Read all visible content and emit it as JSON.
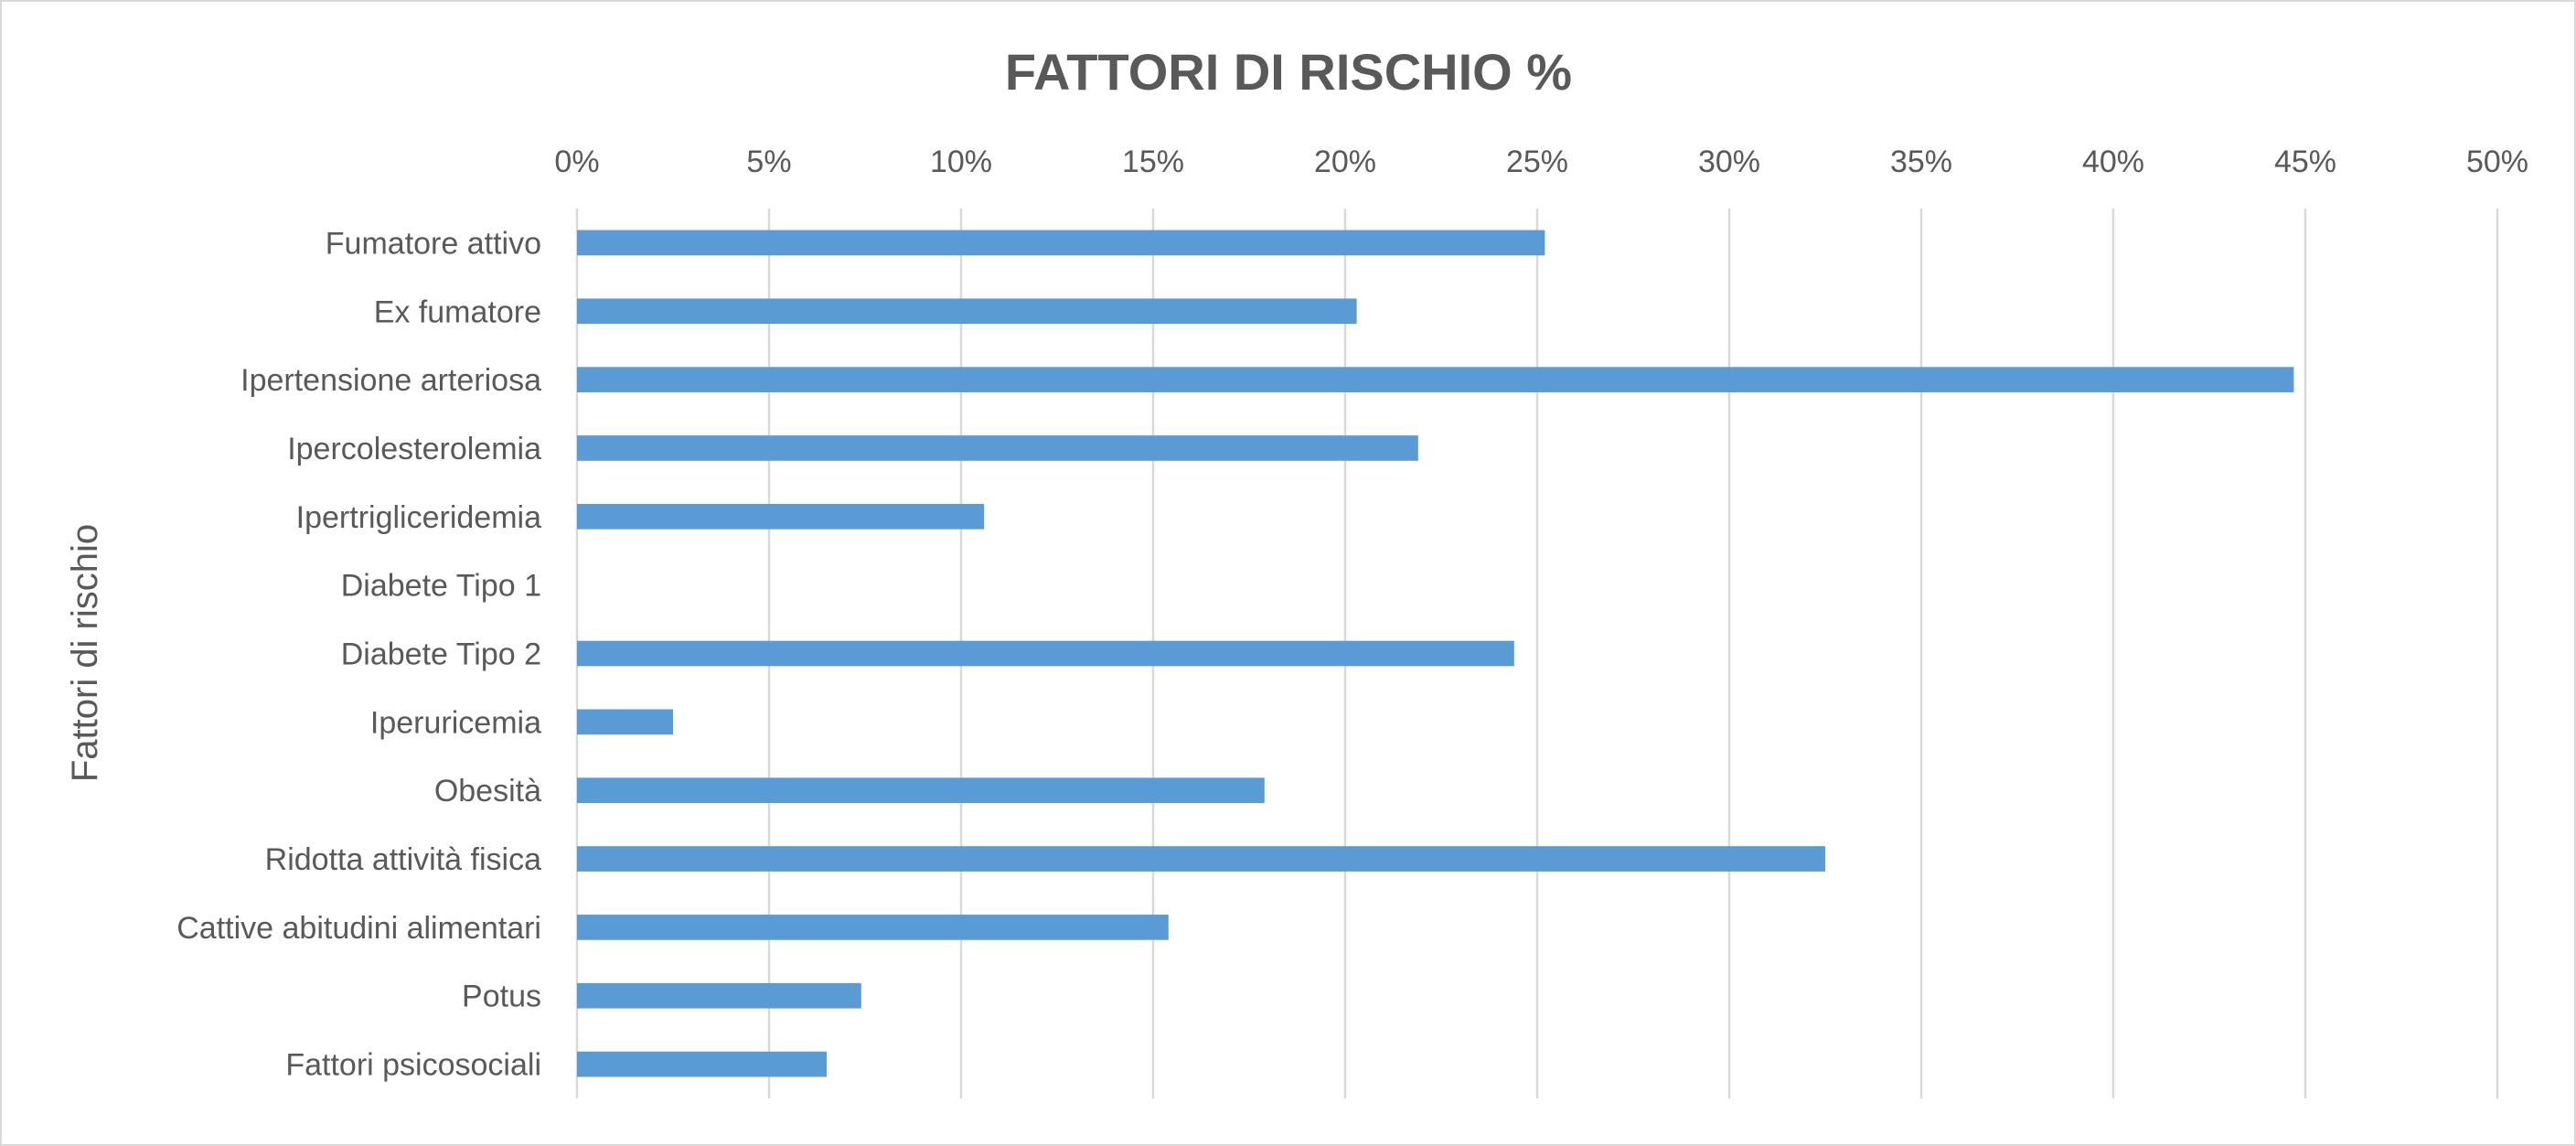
{
  "chart_data": {
    "type": "bar",
    "orientation": "horizontal",
    "title": "FATTORI DI RISCHIO %",
    "xlabel": "",
    "ylabel": "Fattori di rischio",
    "xlim": [
      0,
      50
    ],
    "x_ticks": [
      "0%",
      "5%",
      "10%",
      "15%",
      "20%",
      "25%",
      "30%",
      "35%",
      "40%",
      "45%",
      "50%"
    ],
    "x_tick_values": [
      0,
      5,
      10,
      15,
      20,
      25,
      30,
      35,
      40,
      45,
      50
    ],
    "x_axis_position": "top",
    "grid": true,
    "legend": "none",
    "categories": [
      "Fumatore attivo",
      "Ex fumatore",
      "Ipertensione arteriosa",
      "Ipercolesterolemia",
      "Ipertrigliceridemia",
      "Diabete Tipo 1",
      "Diabete Tipo 2",
      "Iperuricemia",
      "Obesità",
      "Ridotta attività fisica",
      "Cattive abitudini alimentari",
      "Potus",
      "Fattori psicosociali"
    ],
    "series": [
      {
        "name": "Fattori di rischio %",
        "color": "#5b9bd5",
        "values": [
          25.2,
          20.3,
          44.7,
          21.9,
          10.6,
          0,
          24.4,
          2.5,
          17.9,
          32.5,
          15.4,
          7.4,
          6.5
        ]
      }
    ]
  }
}
